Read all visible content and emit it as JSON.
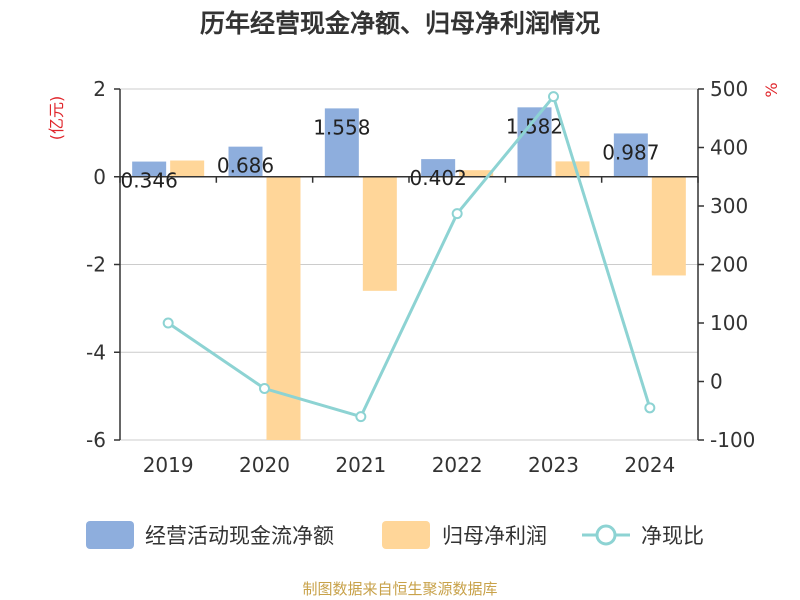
{
  "title": "历年经营现金净额、归母净利润情况",
  "source": "制图数据来自恒生聚源数据库",
  "colors": {
    "operating_cash_flow": "#8eaedd",
    "net_profit": "#ffd699",
    "ratio": "#8dd3d3",
    "unit": "#e0262c",
    "source": "#c8a24a",
    "grid": "#cccccc"
  },
  "chart_data": {
    "type": "bar",
    "title": "历年经营现金净额、归母净利润情况",
    "categories": [
      "2019",
      "2020",
      "2021",
      "2022",
      "2023",
      "2024"
    ],
    "series": [
      {
        "name": "经营活动现金流净额",
        "type": "bar",
        "axis": "left",
        "values": [
          0.346,
          0.686,
          1.558,
          0.402,
          1.582,
          0.987
        ],
        "labels": [
          "0.346",
          "0.686",
          "1.558",
          "0.402",
          "1.582",
          "0.987"
        ]
      },
      {
        "name": "归母净利润",
        "type": "bar",
        "axis": "left",
        "values": [
          0.37,
          -6.0,
          -2.6,
          0.15,
          0.35,
          -2.25
        ]
      },
      {
        "name": "净现比",
        "type": "line",
        "axis": "right",
        "values": [
          100,
          -12,
          -60,
          287,
          487,
          -45
        ]
      }
    ],
    "y_left": {
      "label": "(亿元)",
      "ylim": [
        -6,
        2
      ],
      "ticks": [
        "2",
        "0",
        "-2",
        "-4",
        "-6"
      ]
    },
    "y_right": {
      "label": "%",
      "ylim": [
        -100,
        500
      ],
      "ticks": [
        "500",
        "400",
        "300",
        "200",
        "100",
        "0",
        "-100"
      ]
    },
    "grid": true,
    "legend": "bottom"
  }
}
